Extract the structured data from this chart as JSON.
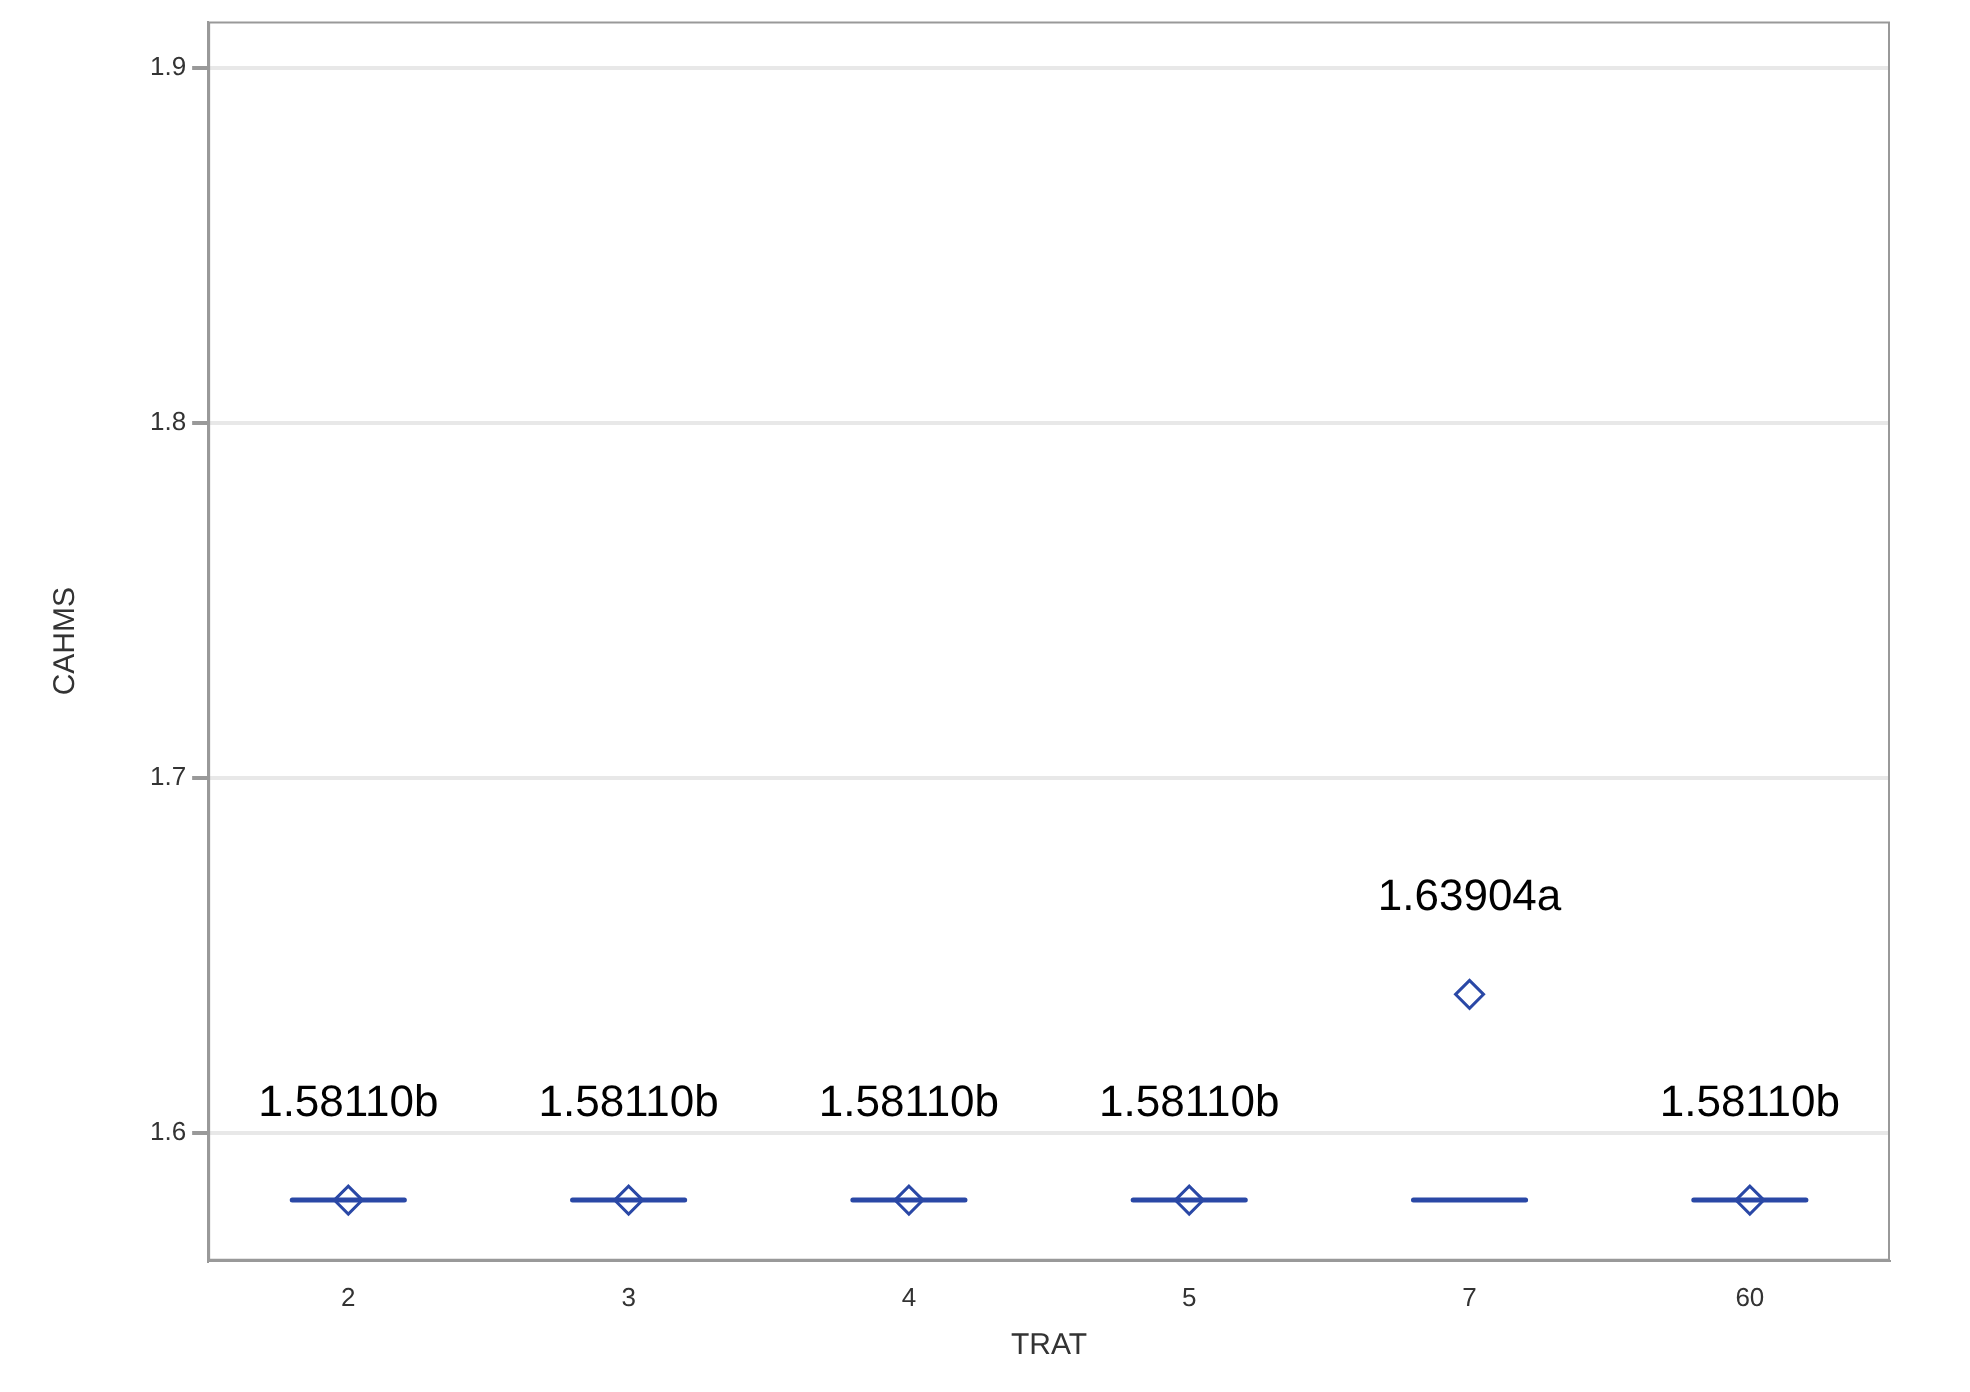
{
  "chart_data": {
    "type": "box",
    "xlabel": "TRAT",
    "ylabel": "CAHMS",
    "categories": [
      "2",
      "3",
      "4",
      "5",
      "7",
      "60"
    ],
    "series": [
      {
        "color": "#2a48a6",
        "boxes": [
          {
            "low": 1.5811,
            "q1": 1.5811,
            "median": 1.5811,
            "q3": 1.5811,
            "high": 1.5811,
            "mean": 1.5811
          },
          {
            "low": 1.5811,
            "q1": 1.5811,
            "median": 1.5811,
            "q3": 1.5811,
            "high": 1.5811,
            "mean": 1.5811
          },
          {
            "low": 1.5811,
            "q1": 1.5811,
            "median": 1.5811,
            "q3": 1.5811,
            "high": 1.5811,
            "mean": 1.5811
          },
          {
            "low": 1.5811,
            "q1": 1.5811,
            "median": 1.5811,
            "q3": 1.5811,
            "high": 1.5811,
            "mean": 1.5811
          },
          {
            "low": 1.5811,
            "q1": 1.5811,
            "median": 1.5811,
            "q3": 1.5811,
            "high": 1.5811,
            "mean": 1.63904
          },
          {
            "low": 1.5811,
            "q1": 1.5811,
            "median": 1.5811,
            "q3": 1.5811,
            "high": 1.5811,
            "mean": 1.5811
          }
        ]
      }
    ],
    "ylim": [
      1.564,
      1.913
    ],
    "yticks": [
      1.6,
      1.7,
      1.8,
      1.9
    ],
    "grid": "y",
    "marker": "diamond",
    "legend": false,
    "annotations": [
      "1.58110b",
      "1.58110b",
      "1.58110b",
      "1.58110b",
      "1.63904a",
      "1.58110b"
    ]
  }
}
